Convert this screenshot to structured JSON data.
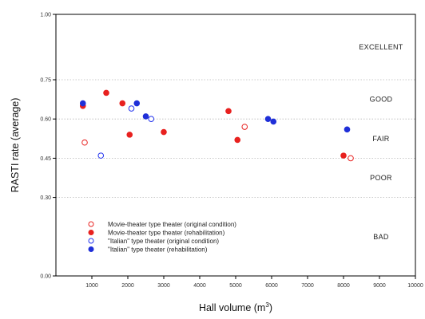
{
  "chart_data": {
    "type": "scatter",
    "title": "",
    "xlabel_main": "Hall volume (m",
    "xlabel_sup": "3",
    "xlabel_close": ")",
    "ylabel": "RASTI rate (average)",
    "xlim": [
      0,
      10000
    ],
    "ylim": [
      0,
      1
    ],
    "x_ticks": [
      1000,
      2000,
      3000,
      4000,
      5000,
      6000,
      7000,
      8000,
      9000,
      10000
    ],
    "y_ticks": [
      {
        "value": 0.0,
        "label": "0.00"
      },
      {
        "value": 0.3,
        "label": "0.30"
      },
      {
        "value": 0.45,
        "label": "0.45"
      },
      {
        "value": 0.6,
        "label": "0.60"
      },
      {
        "value": 0.75,
        "label": "0.75"
      },
      {
        "value": 1.0,
        "label": "1.00"
      }
    ],
    "gridlines": [
      0.3,
      0.45,
      0.6,
      0.75
    ],
    "grid": "dotted horizontal",
    "bands": [
      {
        "label": "EXCELLENT",
        "y": 0.875
      },
      {
        "label": "GOOD",
        "y": 0.675
      },
      {
        "label": "FAIR",
        "y": 0.525
      },
      {
        "label": "POOR",
        "y": 0.375
      },
      {
        "label": "BAD",
        "y": 0.15
      }
    ],
    "legend_position": "bottom-left",
    "series": [
      {
        "name": "Movie-theater type theater (original condition)",
        "color": "#e8211f",
        "marker": "open-circle",
        "points": [
          [
            800,
            0.51
          ],
          [
            5250,
            0.57
          ],
          [
            8200,
            0.45
          ]
        ]
      },
      {
        "name": "Movie-theater type theater (rehabilitation)",
        "color": "#e8211f",
        "marker": "filled-circle",
        "points": [
          [
            750,
            0.65
          ],
          [
            1400,
            0.7
          ],
          [
            1850,
            0.66
          ],
          [
            2050,
            0.54
          ],
          [
            3000,
            0.55
          ],
          [
            4800,
            0.63
          ],
          [
            5050,
            0.52
          ],
          [
            8000,
            0.46
          ]
        ]
      },
      {
        "name": "\"Italian\" type theater (original condition)",
        "color": "#2233ee",
        "marker": "open-circle",
        "points": [
          [
            1250,
            0.46
          ],
          [
            2100,
            0.64
          ],
          [
            2650,
            0.6
          ]
        ]
      },
      {
        "name": "\"Italian\" type theater (rehabilitation)",
        "color": "#1f2fd8",
        "marker": "filled-circle",
        "points": [
          [
            750,
            0.66
          ],
          [
            2250,
            0.66
          ],
          [
            2500,
            0.61
          ],
          [
            5900,
            0.6
          ],
          [
            6050,
            0.59
          ],
          [
            8100,
            0.56
          ]
        ]
      }
    ]
  }
}
